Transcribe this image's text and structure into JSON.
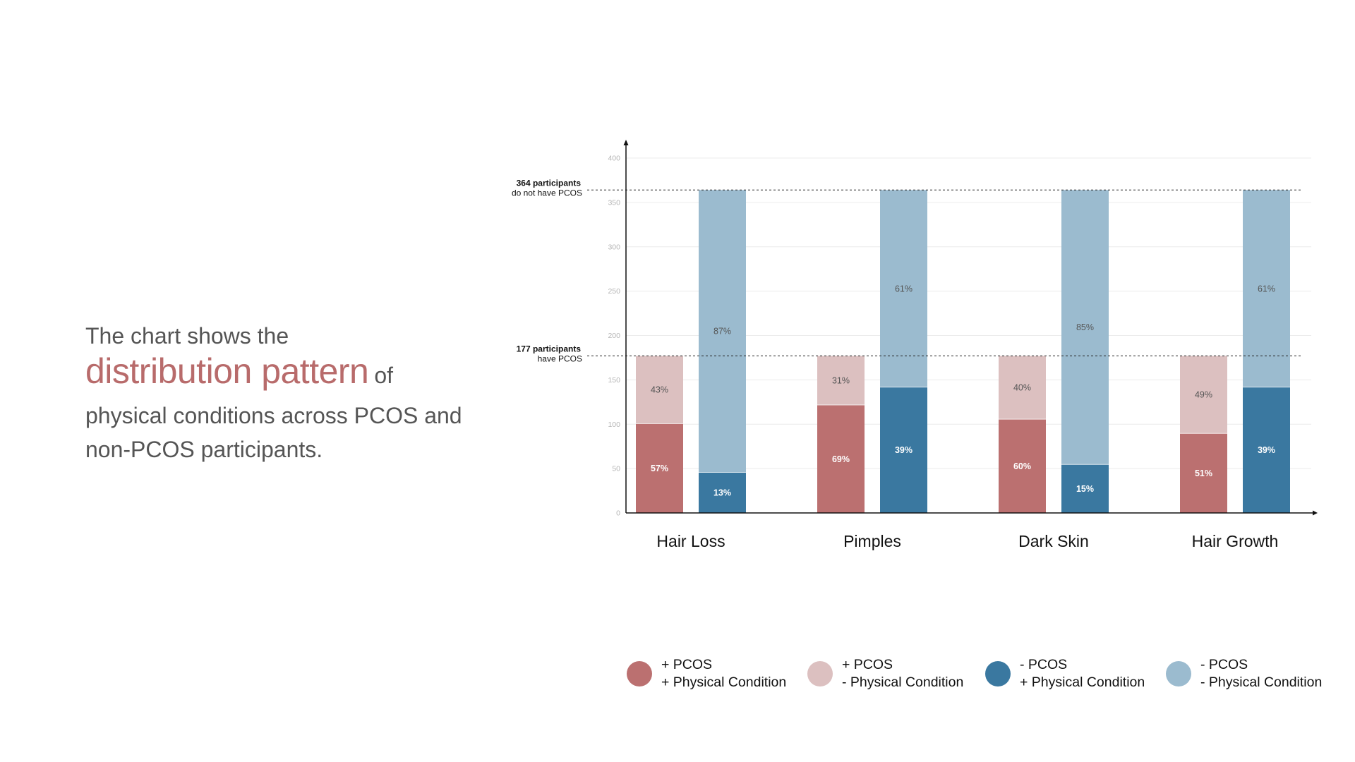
{
  "intro": {
    "line1": "The chart shows the",
    "highlight": "distribution pattern",
    "after_highlight": "of",
    "line3": "physical conditions across PCOS and",
    "line4": "non-PCOS participants."
  },
  "colors": {
    "pcos_yes_cond_yes": "#bb7070",
    "pcos_yes_cond_no": "#dcc0c0",
    "pcos_no_cond_yes": "#3a78a0",
    "pcos_no_cond_no": "#9bbbcf",
    "highlight_text": "#b86b6b"
  },
  "chart_data": {
    "type": "bar",
    "stacked": true,
    "categories": [
      "Hair Loss",
      "Pimples",
      "Dark Skin",
      "Hair Growth"
    ],
    "ylim": [
      0,
      400
    ],
    "yticks": [
      0,
      50,
      100,
      150,
      200,
      250,
      300,
      350,
      400
    ],
    "grid": true,
    "groups": [
      {
        "name": "PCOS",
        "total": 177,
        "series": [
          {
            "name": "+ PCOS + Physical Condition",
            "values": [
              101,
              122,
              106,
              90
            ],
            "labels": [
              "57%",
              "69%",
              "60%",
              "51%"
            ]
          },
          {
            "name": "+ PCOS - Physical Condition",
            "values": [
              76,
              55,
              71,
              87
            ],
            "labels": [
              "43%",
              "31%",
              "40%",
              "49%"
            ]
          }
        ]
      },
      {
        "name": "non-PCOS",
        "total": 364,
        "series": [
          {
            "name": "- PCOS + Physical Condition",
            "values": [
              46,
              142,
              55,
              142
            ],
            "labels": [
              "13%",
              "39%",
              "15%",
              "39%"
            ]
          },
          {
            "name": "- PCOS - Physical Condition",
            "values": [
              318,
              222,
              309,
              222
            ],
            "labels": [
              "87%",
              "61%",
              "85%",
              "61%"
            ]
          }
        ]
      }
    ],
    "reference_lines": [
      {
        "value": 364,
        "bold": "364 participants",
        "text": "do not have PCOS"
      },
      {
        "value": 177,
        "bold": "177 participants",
        "text": "have PCOS"
      }
    ],
    "legend_position": "bottom"
  },
  "legend": [
    {
      "line1": "+ PCOS",
      "line2": "+ Physical Condition"
    },
    {
      "line1": "+ PCOS",
      "line2": "- Physical Condition"
    },
    {
      "line1": "- PCOS",
      "line2": "+ Physical Condition"
    },
    {
      "line1": "- PCOS",
      "line2": "- Physical Condition"
    }
  ]
}
